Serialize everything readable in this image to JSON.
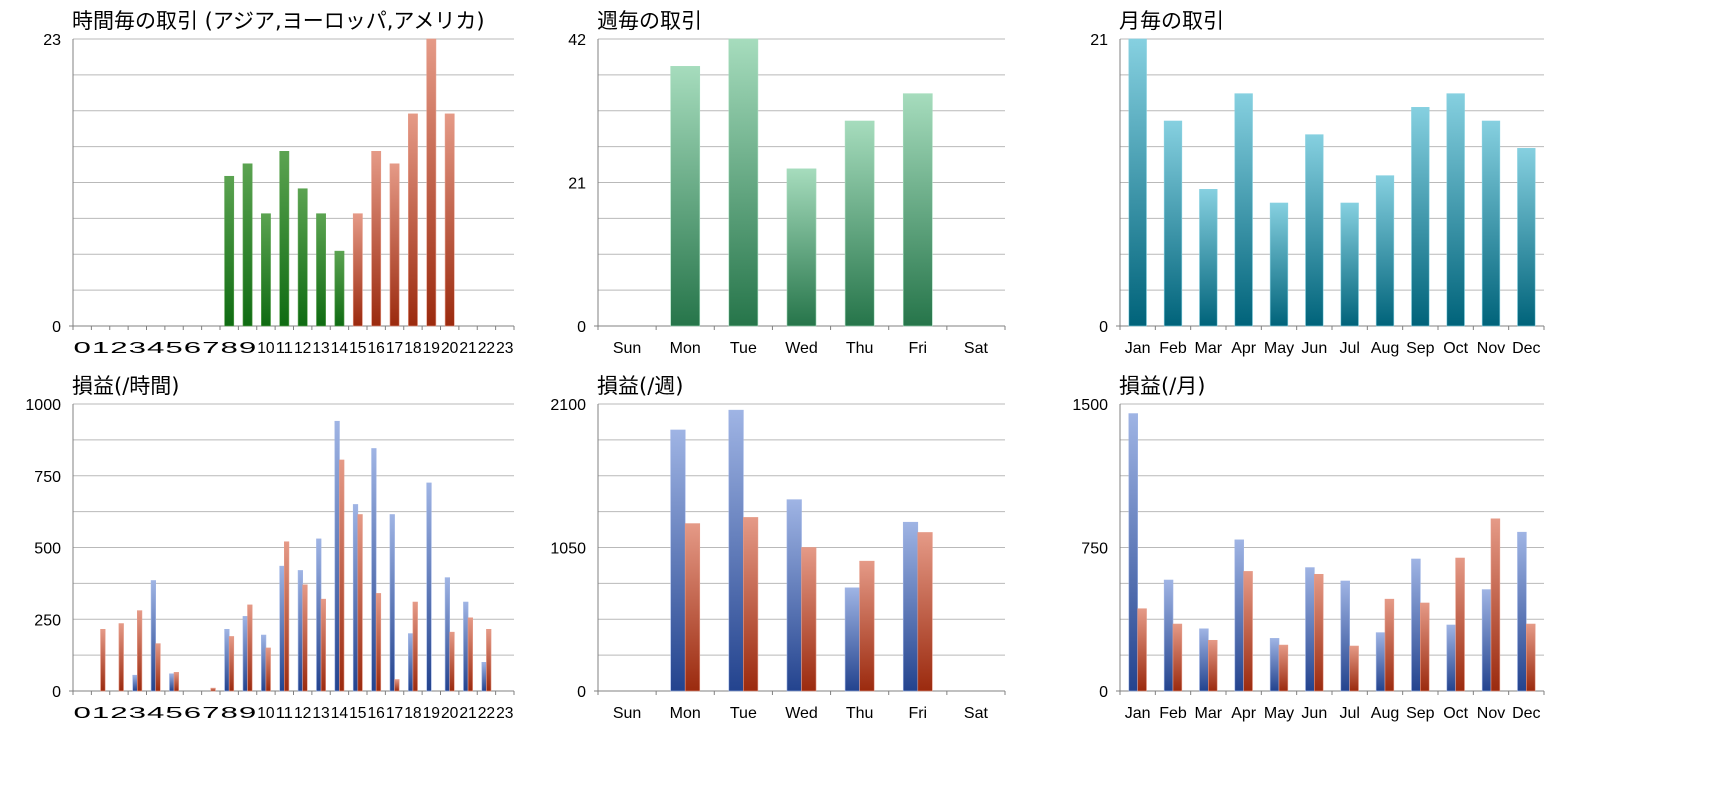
{
  "chart_data": [
    {
      "id": "trades-hour",
      "type": "bar",
      "title": "時間毎の取引 (アジア,ヨーロッパ,アメリカ)",
      "categories": [
        "0",
        "1",
        "2",
        "3",
        "4",
        "5",
        "6",
        "7",
        "8",
        "9",
        "10",
        "11",
        "12",
        "13",
        "14",
        "15",
        "16",
        "17",
        "18",
        "19",
        "20",
        "21",
        "22",
        "23"
      ],
      "ylim": [
        0,
        23
      ],
      "ytick_labels": [
        "0",
        "23"
      ],
      "gridlines": 8,
      "grid": true,
      "values": [
        0,
        0,
        0,
        0,
        0,
        0,
        0,
        0,
        12,
        13,
        9,
        14,
        11,
        9,
        6,
        9,
        14,
        13,
        17,
        23,
        17,
        0,
        0,
        0
      ],
      "colors": [
        "green",
        "green",
        "green",
        "green",
        "green",
        "green",
        "green",
        "green",
        "green",
        "green",
        "green",
        "green",
        "green",
        "green",
        "green",
        "red",
        "red",
        "red",
        "red",
        "red",
        "red",
        "red",
        "red",
        "red"
      ]
    },
    {
      "id": "trades-week",
      "type": "bar",
      "title": "週毎の取引",
      "categories": [
        "Sun",
        "Mon",
        "Tue",
        "Wed",
        "Thu",
        "Fri",
        "Sat"
      ],
      "ylim": [
        0,
        42
      ],
      "ytick_labels": [
        "0",
        "21",
        "42"
      ],
      "gridlines": 8,
      "grid": true,
      "values": [
        0,
        38,
        42,
        23,
        30,
        34,
        0
      ],
      "color": "seagreen"
    },
    {
      "id": "trades-month",
      "type": "bar",
      "title": "月毎の取引",
      "categories": [
        "Jan",
        "Feb",
        "Mar",
        "Apr",
        "May",
        "Jun",
        "Jul",
        "Aug",
        "Sep",
        "Oct",
        "Nov",
        "Dec"
      ],
      "ylim": [
        0,
        21
      ],
      "ytick_labels": [
        "0",
        "21"
      ],
      "gridlines": 8,
      "grid": true,
      "values": [
        21,
        15,
        10,
        17,
        9,
        14,
        9,
        11,
        16,
        17,
        15,
        13
      ],
      "color": "teal"
    },
    {
      "id": "pl-hour",
      "type": "bar",
      "title": "損益(/時間)",
      "categories": [
        "0",
        "1",
        "2",
        "3",
        "4",
        "5",
        "6",
        "7",
        "8",
        "9",
        "10",
        "11",
        "12",
        "13",
        "14",
        "15",
        "16",
        "17",
        "18",
        "19",
        "20",
        "21",
        "22",
        "23"
      ],
      "ylim": [
        0,
        1000
      ],
      "ytick_labels": [
        "0",
        "250",
        "500",
        "750",
        "1000"
      ],
      "gridlines": 8,
      "grid": true,
      "series": [
        {
          "color": "blue",
          "values": [
            0,
            0,
            0,
            55,
            385,
            60,
            0,
            0,
            215,
            260,
            195,
            435,
            420,
            530,
            940,
            650,
            845,
            615,
            200,
            725,
            395,
            310,
            100,
            0
          ]
        },
        {
          "color": "red",
          "values": [
            0,
            215,
            235,
            280,
            165,
            65,
            0,
            10,
            190,
            300,
            150,
            520,
            370,
            320,
            805,
            615,
            340,
            40,
            310,
            0,
            205,
            255,
            215,
            0
          ]
        }
      ]
    },
    {
      "id": "pl-week",
      "type": "bar",
      "title": "損益(/週)",
      "categories": [
        "Sun",
        "Mon",
        "Tue",
        "Wed",
        "Thu",
        "Fri",
        "Sat"
      ],
      "ylim": [
        0,
        2100
      ],
      "ytick_labels": [
        "0",
        "1050",
        "2100"
      ],
      "gridlines": 8,
      "grid": true,
      "series": [
        {
          "color": "blue",
          "values": [
            0,
            1910,
            2055,
            1400,
            755,
            1235,
            0
          ]
        },
        {
          "color": "red",
          "values": [
            0,
            1225,
            1270,
            1050,
            950,
            1160,
            0
          ]
        }
      ]
    },
    {
      "id": "pl-month",
      "type": "bar",
      "title": "損益(/月)",
      "categories": [
        "Jan",
        "Feb",
        "Mar",
        "Apr",
        "May",
        "Jun",
        "Jul",
        "Aug",
        "Sep",
        "Oct",
        "Nov",
        "Dec"
      ],
      "ylim": [
        0,
        1500
      ],
      "ytick_labels": [
        "0",
        "750",
        "1500"
      ],
      "gridlines": 8,
      "grid": true,
      "series": [
        {
          "color": "blue",
          "values": [
            1450,
            580,
            325,
            790,
            275,
            645,
            575,
            305,
            690,
            345,
            530,
            830
          ]
        },
        {
          "color": "red",
          "values": [
            430,
            350,
            265,
            625,
            240,
            610,
            235,
            480,
            460,
            695,
            900,
            350
          ]
        }
      ]
    }
  ],
  "colors": {
    "green": [
      "#5ba351",
      "#0f6b12"
    ],
    "red": [
      "#e59a87",
      "#9b2a0e"
    ],
    "seagreen": [
      "#a6dcbd",
      "#26754a"
    ],
    "teal": [
      "#86d0e0",
      "#00637a"
    ],
    "blue": [
      "#9fb4e4",
      "#23438e"
    ],
    "grid": "#b9b9b9",
    "axis": "#808080"
  }
}
